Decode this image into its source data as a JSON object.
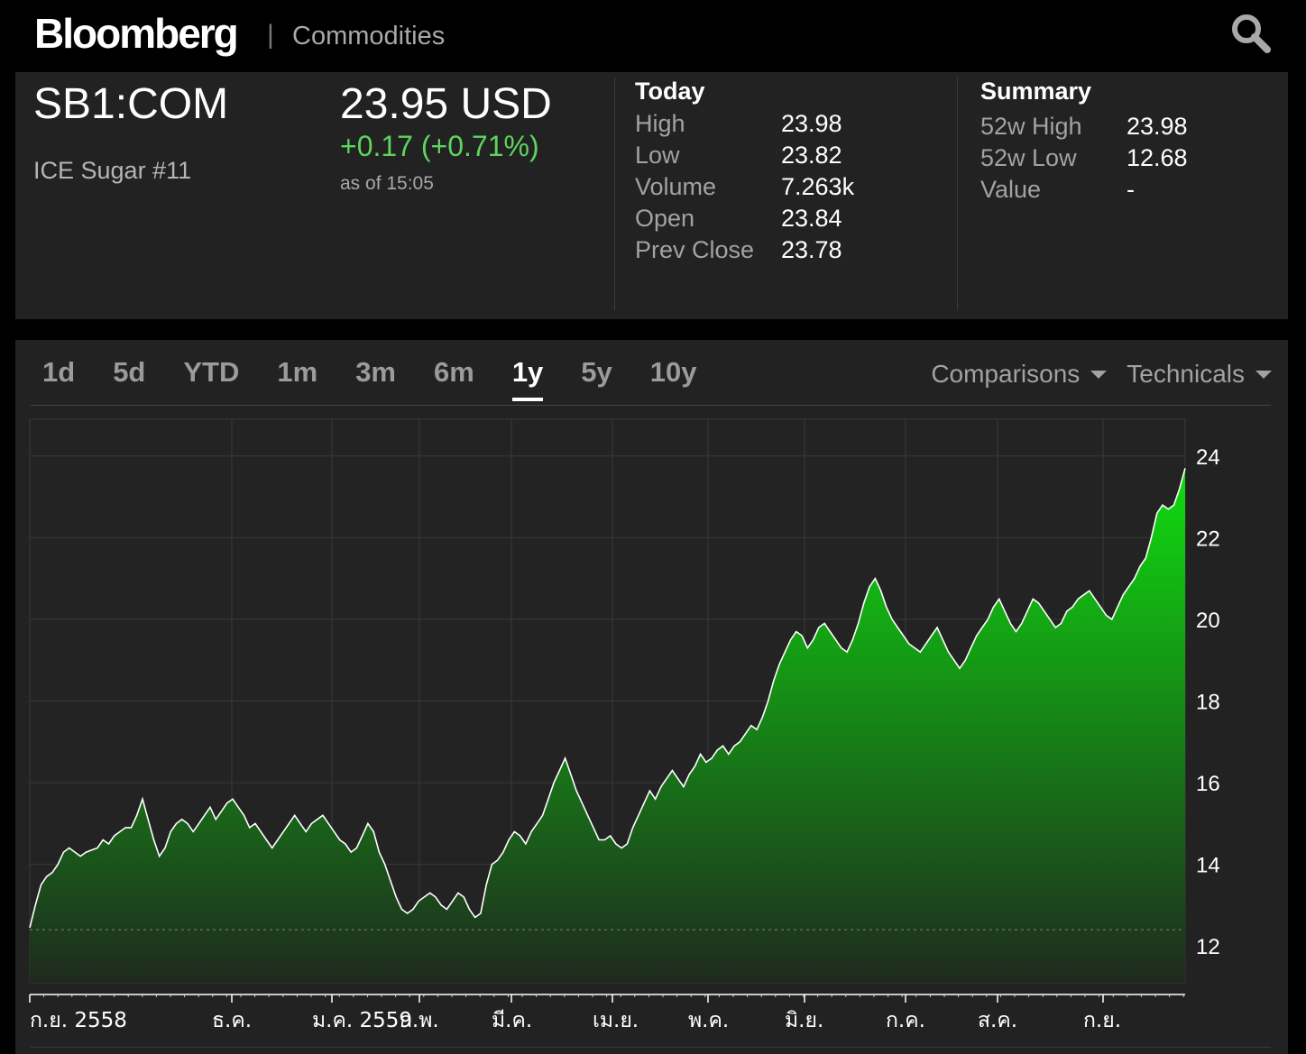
{
  "header": {
    "logo": "Bloomberg",
    "separator": "|",
    "section": "Commodities",
    "search_icon": "search-icon"
  },
  "quote": {
    "ticker": "SB1:COM",
    "name": "ICE Sugar #11",
    "price": "23.95 USD",
    "change": "+0.17 (+0.71%)",
    "as_of": "as of 15:05",
    "today": {
      "title": "Today",
      "rows": [
        {
          "label": "High",
          "value": "23.98"
        },
        {
          "label": "Low",
          "value": "23.82"
        },
        {
          "label": "Volume",
          "value": "7.263k"
        },
        {
          "label": "Open",
          "value": "23.84"
        },
        {
          "label": "Prev Close",
          "value": "23.78"
        }
      ]
    },
    "summary": {
      "title": "Summary",
      "rows": [
        {
          "label": "52w High",
          "value": "23.98"
        },
        {
          "label": "52w Low",
          "value": "12.68"
        },
        {
          "label": "Value",
          "value": "-"
        }
      ]
    }
  },
  "colors": {
    "positive": "#5ed45e",
    "area_top": "#0fdc0f",
    "area_bottom": "#1e2a1e",
    "panel": "#222222"
  },
  "chart": {
    "tabs": [
      "1d",
      "5d",
      "YTD",
      "1m",
      "3m",
      "6m",
      "1y",
      "5y",
      "10y"
    ],
    "active_tab": "1y",
    "menus": [
      "Comparisons",
      "Technicals"
    ]
  },
  "chart_data": {
    "type": "area",
    "title": "",
    "xlabel": "",
    "ylabel": "",
    "ylim": [
      11.1,
      24.9
    ],
    "yticks": [
      12,
      14,
      16,
      18,
      20,
      22,
      24
    ],
    "reference_line": 12.4,
    "x_tick_labels": [
      "ก.ย. 2558",
      "ธ.ค.",
      "ม.ค. 2559",
      "ก.พ.",
      "มี.ค.",
      "เม.ย.",
      "พ.ค.",
      "มิ.ย.",
      "ก.ค.",
      "ส.ค.",
      "ก.ย."
    ],
    "grid": true,
    "series": [
      {
        "values": [
          12.45,
          13.0,
          13.5,
          13.7,
          13.8,
          14.0,
          14.3,
          14.4,
          14.3,
          14.2,
          14.3,
          14.35,
          14.4,
          14.6,
          14.5,
          14.7,
          14.8,
          14.9,
          14.9,
          15.2,
          15.6,
          15.1,
          14.6,
          14.2,
          14.4,
          14.8,
          15.0,
          15.1,
          15.0,
          14.8,
          15.0,
          15.2,
          15.4,
          15.1,
          15.3,
          15.5,
          15.6,
          15.4,
          15.2,
          14.9,
          15.0,
          14.8,
          14.6,
          14.4,
          14.6,
          14.8,
          15.0,
          15.2,
          15.0,
          14.8,
          15.0,
          15.1,
          15.2,
          15.0,
          14.8,
          14.6,
          14.5,
          14.3,
          14.4,
          14.7,
          15.0,
          14.8,
          14.3,
          14.0,
          13.6,
          13.2,
          12.9,
          12.8,
          12.9,
          13.1,
          13.2,
          13.3,
          13.2,
          13.0,
          12.9,
          13.1,
          13.3,
          13.2,
          12.9,
          12.7,
          12.8,
          13.5,
          14.0,
          14.1,
          14.3,
          14.6,
          14.8,
          14.7,
          14.5,
          14.8,
          15.0,
          15.2,
          15.6,
          16.0,
          16.3,
          16.6,
          16.2,
          15.8,
          15.5,
          15.2,
          14.9,
          14.6,
          14.6,
          14.7,
          14.5,
          14.4,
          14.5,
          14.9,
          15.2,
          15.5,
          15.8,
          15.6,
          15.9,
          16.1,
          16.3,
          16.1,
          15.9,
          16.2,
          16.4,
          16.7,
          16.5,
          16.6,
          16.8,
          16.9,
          16.7,
          16.9,
          17.0,
          17.2,
          17.4,
          17.3,
          17.6,
          18.0,
          18.5,
          18.9,
          19.2,
          19.5,
          19.7,
          19.6,
          19.3,
          19.5,
          19.8,
          19.9,
          19.7,
          19.5,
          19.3,
          19.2,
          19.5,
          19.9,
          20.4,
          20.8,
          21.0,
          20.7,
          20.3,
          20.0,
          19.8,
          19.6,
          19.4,
          19.3,
          19.2,
          19.4,
          19.6,
          19.8,
          19.5,
          19.2,
          19.0,
          18.8,
          19.0,
          19.3,
          19.6,
          19.8,
          20.0,
          20.3,
          20.5,
          20.2,
          19.9,
          19.7,
          19.9,
          20.2,
          20.5,
          20.4,
          20.2,
          20.0,
          19.8,
          19.9,
          20.2,
          20.3,
          20.5,
          20.6,
          20.7,
          20.5,
          20.3,
          20.1,
          20.0,
          20.3,
          20.6,
          20.8,
          21.0,
          21.3,
          21.5,
          22.0,
          22.6,
          22.8,
          22.7,
          22.8,
          23.2,
          23.7
        ]
      }
    ]
  }
}
